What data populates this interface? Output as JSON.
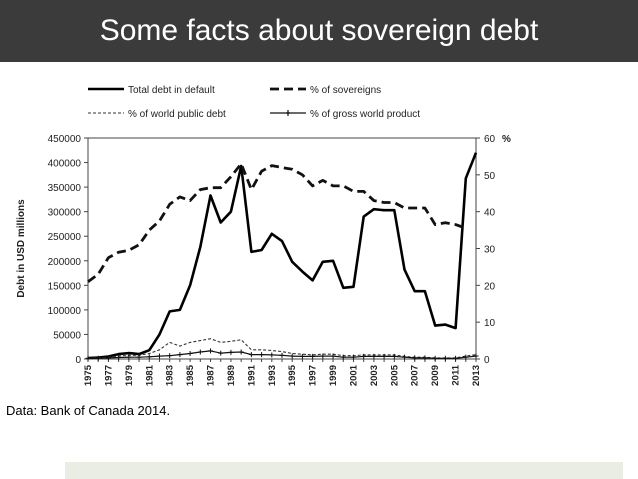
{
  "slide": {
    "title": "Some facts about sovereign debt",
    "caption": "Data: Bank of Canada 2014."
  },
  "colors": {
    "title_bar": "#3b3b3b",
    "footer_strip": "#e9ede4"
  },
  "chart_data": {
    "type": "line",
    "title": "",
    "ylabel_left": "Debt in USD millions",
    "ylabel_right": "%",
    "x": [
      1975,
      1976,
      1977,
      1978,
      1979,
      1980,
      1981,
      1982,
      1983,
      1984,
      1985,
      1986,
      1987,
      1988,
      1989,
      1990,
      1991,
      1992,
      1993,
      1994,
      1995,
      1996,
      1997,
      1998,
      1999,
      2000,
      2001,
      2002,
      2003,
      2004,
      2005,
      2006,
      2007,
      2008,
      2009,
      2010,
      2011,
      2012,
      2013
    ],
    "x_tick_labels": [
      "1975",
      "1977",
      "1979",
      "1981",
      "1983",
      "1985",
      "1987",
      "1989",
      "1991",
      "1993",
      "1995",
      "1997",
      "1999",
      "2001",
      "2003",
      "2005",
      "2007",
      "2009",
      "2011",
      "2013"
    ],
    "y_left": {
      "lim": [
        0,
        450000
      ],
      "ticks": [
        "0",
        "50000",
        "100000",
        "150000",
        "200000",
        "250000",
        "300000",
        "350000",
        "400000",
        "450000"
      ]
    },
    "y_right": {
      "lim": [
        0,
        60
      ],
      "ticks": [
        "0",
        "10",
        "20",
        "30",
        "40",
        "50",
        "60"
      ]
    },
    "legend": [
      "Total debt in default",
      "% of sovereigns",
      "% of world public debt",
      "% of gross world product"
    ],
    "series": [
      {
        "name": "Total debt in default",
        "axis": "left",
        "style": "solid",
        "values": [
          2000,
          3000,
          5000,
          10000,
          12000,
          10000,
          18000,
          50000,
          97000,
          100000,
          150000,
          228000,
          333000,
          278000,
          300000,
          393000,
          218000,
          222000,
          255000,
          240000,
          198000,
          178000,
          160000,
          198000,
          200000,
          145000,
          147000,
          290000,
          305000,
          303000,
          303000,
          182000,
          138000,
          138000,
          68000,
          70000,
          63000,
          368000,
          420000
        ]
      },
      {
        "name": "% of sovereigns",
        "axis": "right",
        "style": "dash",
        "values": [
          21,
          23,
          27.5,
          29,
          29.5,
          31,
          35,
          37.5,
          42,
          44,
          43,
          46,
          46.5,
          46.5,
          49.5,
          53,
          46,
          51,
          52.5,
          52,
          51.5,
          50,
          47,
          48.5,
          47,
          47,
          45.5,
          45.5,
          43,
          42.5,
          42.5,
          41,
          41,
          41,
          36.5,
          37,
          36.5,
          35.5,
          null
        ]
      },
      {
        "name": "% of world public debt",
        "axis": "right",
        "style": "shortdash",
        "values": [
          0.3,
          0.3,
          0.5,
          0.8,
          1,
          1,
          1.5,
          2.5,
          4.5,
          3.5,
          4.5,
          5,
          5.5,
          4.5,
          4.8,
          5.2,
          2.5,
          2.5,
          2.3,
          2,
          1.5,
          1.3,
          1.1,
          1.3,
          1.3,
          0.9,
          0.9,
          1.1,
          1.1,
          1.1,
          1.1,
          0.7,
          0.5,
          0.5,
          0.3,
          0.3,
          0.3,
          0.8,
          1.2
        ]
      },
      {
        "name": "% of gross world product",
        "axis": "right",
        "style": "solid-marker",
        "values": [
          0.2,
          0.2,
          0.3,
          0.4,
          0.5,
          0.5,
          0.6,
          0.8,
          0.9,
          1.2,
          1.5,
          1.9,
          2.2,
          1.6,
          1.8,
          1.9,
          1.2,
          1.2,
          1.1,
          1,
          0.8,
          0.7,
          0.7,
          0.8,
          0.8,
          0.5,
          0.5,
          0.7,
          0.7,
          0.7,
          0.7,
          0.5,
          0.3,
          0.3,
          0.2,
          0.2,
          0.2,
          0.5,
          0.8
        ]
      }
    ]
  }
}
